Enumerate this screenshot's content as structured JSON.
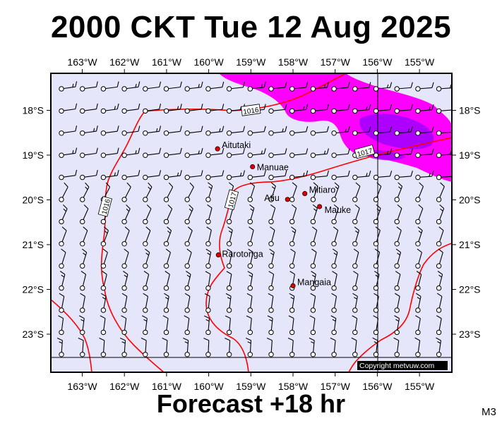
{
  "title": "2000 CKT Tue 12 Aug 2025",
  "subtitle": "Forecast +18 hr",
  "map_code": "M3",
  "copyright": "Copyright metvuw.com",
  "colors": {
    "ocean": "#e6e6fa",
    "isobar": "#ff0000",
    "rain_light": "#ff00ff",
    "rain_heavy": "#a000ff",
    "town": "#dd0000"
  },
  "longitude_labels": [
    "163°W",
    "162°W",
    "161°W",
    "160°W",
    "159°W",
    "158°W",
    "157°W",
    "156°W",
    "155°W"
  ],
  "latitude_labels": [
    "18°S",
    "19°S",
    "20°S",
    "21°S",
    "22°S",
    "23°S"
  ],
  "places": [
    {
      "name": "Aitutaki",
      "lon": -159.79,
      "lat": -18.86
    },
    {
      "name": "Manuae",
      "lon": -158.96,
      "lat": -19.26
    },
    {
      "name": "Atiu",
      "lon": -158.13,
      "lat": -19.99
    },
    {
      "name": "Mitiaro",
      "lon": -157.72,
      "lat": -19.86
    },
    {
      "name": "Mauke",
      "lon": -157.37,
      "lat": -20.15
    },
    {
      "name": "Rarotonga",
      "lon": -159.77,
      "lat": -21.23
    },
    {
      "name": "Mangaia",
      "lon": -158.0,
      "lat": -21.92
    }
  ],
  "isobar_labels": [
    {
      "text": "1016",
      "lon": -159.0,
      "lat": -18.0
    },
    {
      "text": "1016",
      "lon": -162.45,
      "lat": -20.15
    },
    {
      "text": "1017",
      "lon": -159.45,
      "lat": -20.0
    },
    {
      "text": "1017",
      "lon": -156.3,
      "lat": -18.93
    }
  ],
  "wind": {
    "description": "wind barbs on regular grid"
  }
}
